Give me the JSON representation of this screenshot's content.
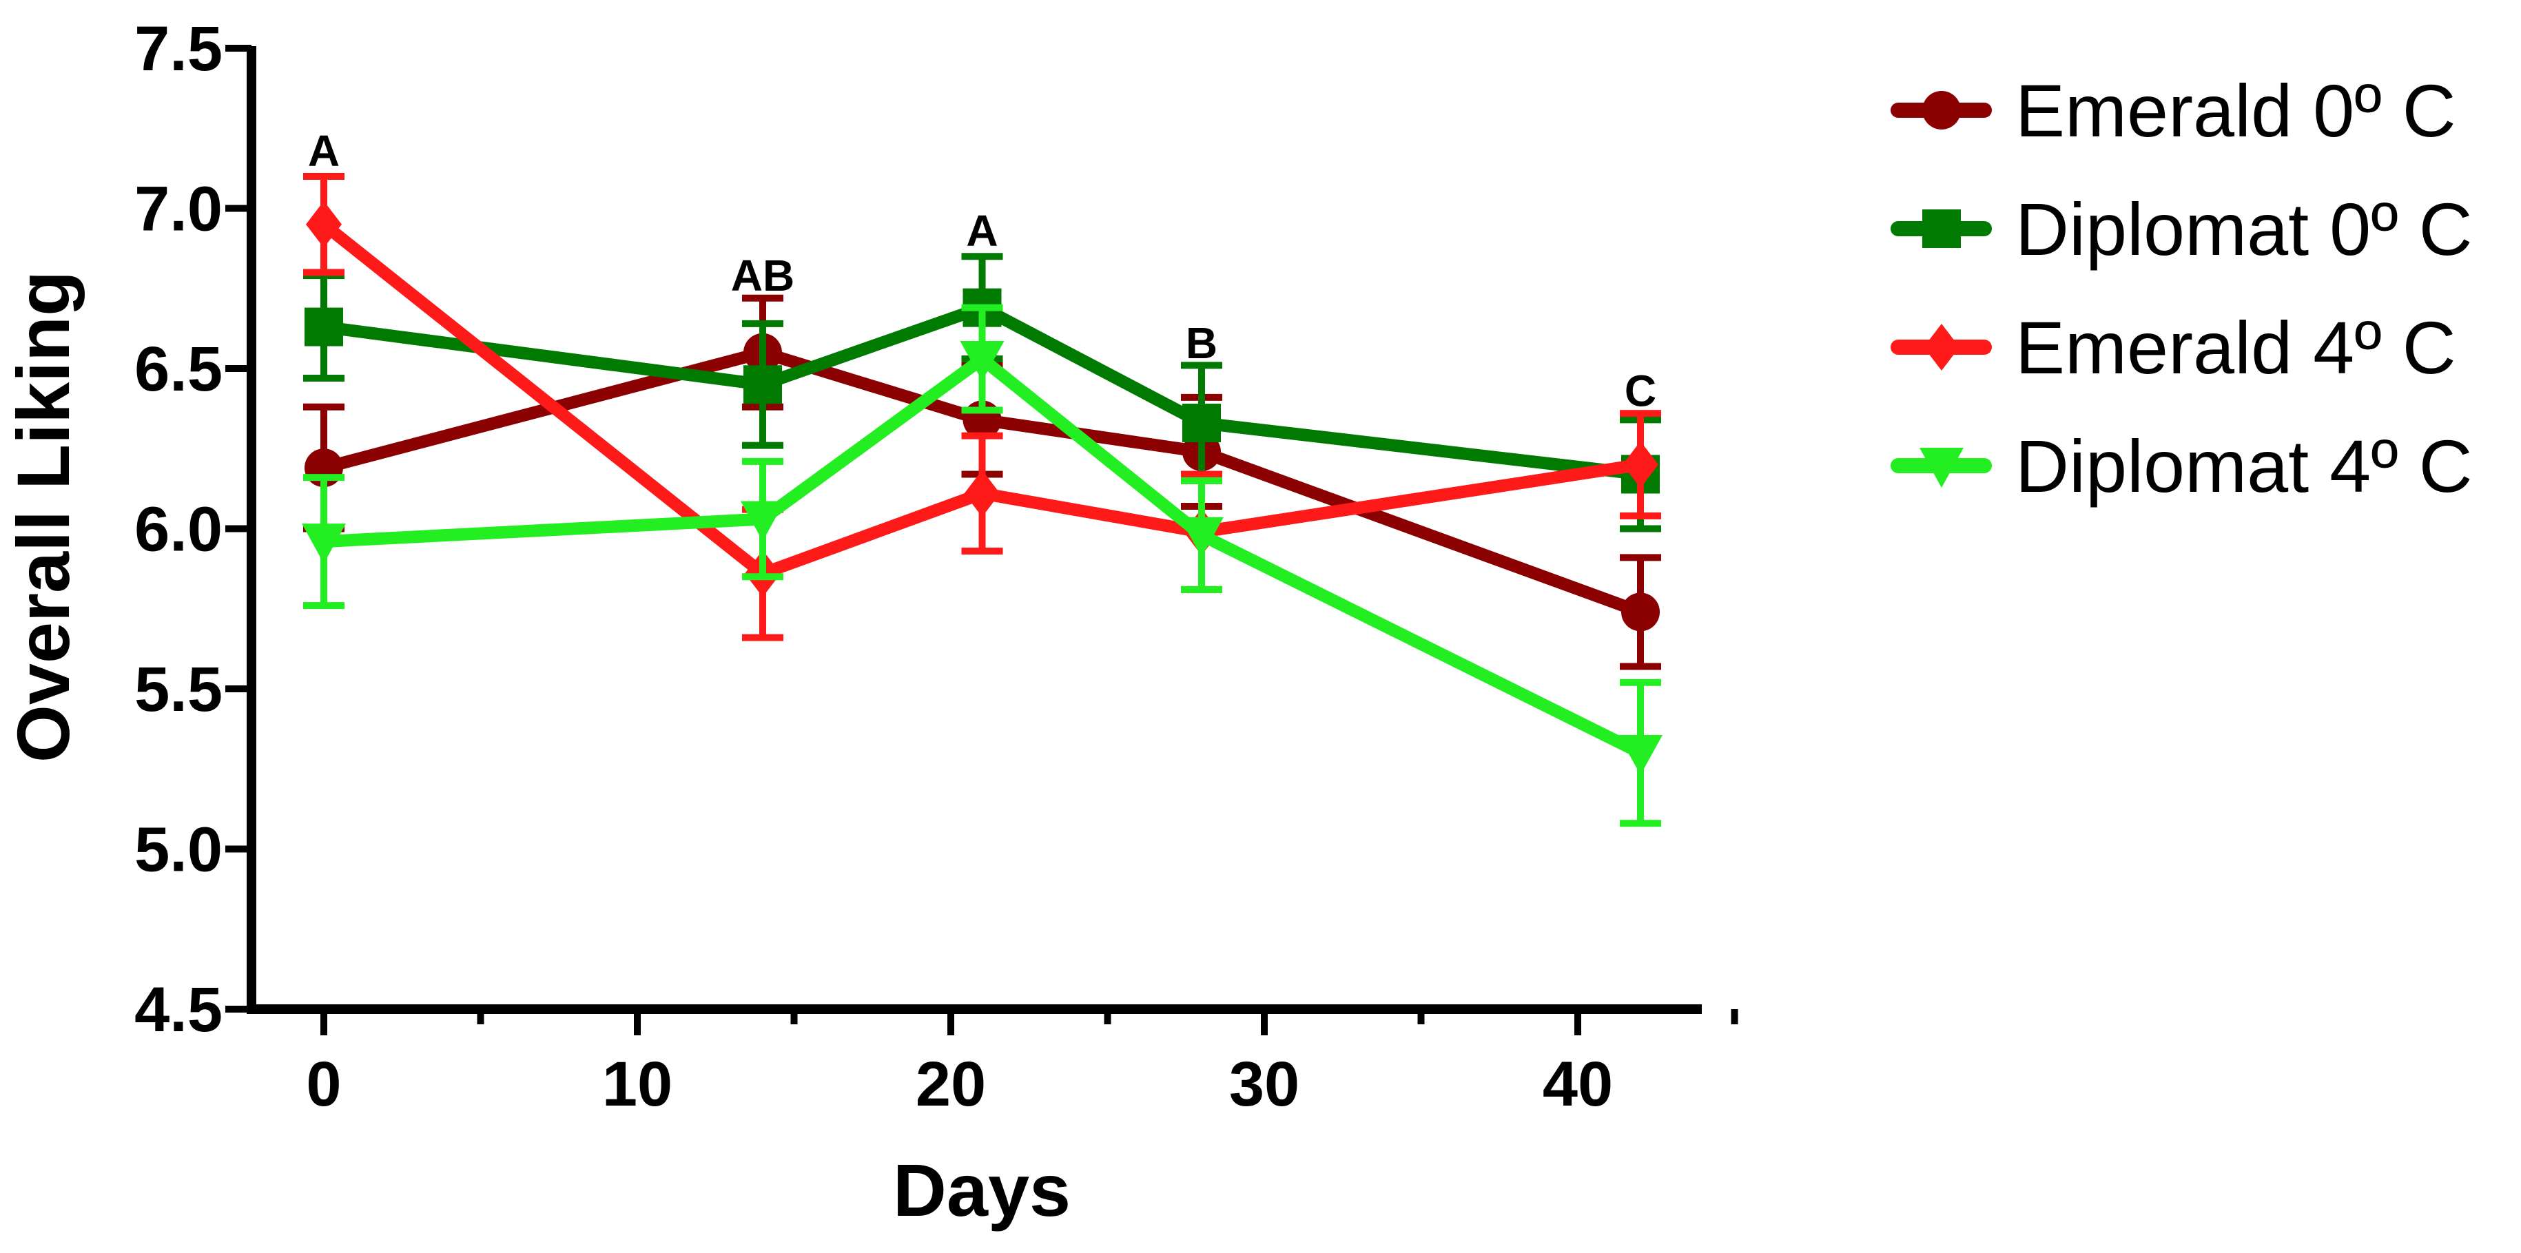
{
  "chart_data": {
    "type": "line",
    "title": "",
    "xlabel": "Days",
    "ylabel": "Overall Liking",
    "xlim": [
      -2,
      45
    ],
    "ylim": [
      4.5,
      7.5
    ],
    "xticks": [
      0,
      10,
      20,
      30,
      40
    ],
    "xtick_labels": [
      "0",
      "10",
      "20",
      "30",
      "40"
    ],
    "yticks": [
      4.5,
      5.0,
      5.5,
      6.0,
      6.5,
      7.0,
      7.5
    ],
    "ytick_labels": [
      "4.5",
      "5.0",
      "5.5",
      "6.0",
      "6.5",
      "7.0",
      "7.5"
    ],
    "legend_position": "right",
    "series": [
      {
        "name": "Emerald 0º C",
        "color": "#8B0000",
        "marker": "circle",
        "x": [
          0,
          14,
          21,
          28,
          42
        ],
        "y": [
          6.19,
          6.55,
          6.34,
          6.24,
          5.74
        ],
        "err": [
          0.19,
          0.17,
          0.17,
          0.17,
          0.17
        ]
      },
      {
        "name": "Diplomat 0º C",
        "color": "#007A00",
        "marker": "square",
        "x": [
          0,
          14,
          21,
          28,
          42
        ],
        "y": [
          6.63,
          6.45,
          6.69,
          6.33,
          6.17
        ],
        "err": [
          0.16,
          0.19,
          0.16,
          0.18,
          0.17
        ]
      },
      {
        "name": "Emerald 4º C",
        "color": "#FF1A1A",
        "marker": "diamond",
        "x": [
          0,
          14,
          21,
          28,
          42
        ],
        "y": [
          6.95,
          5.86,
          6.11,
          5.99,
          6.2
        ],
        "err": [
          0.15,
          0.2,
          0.18,
          0.18,
          0.16
        ]
      },
      {
        "name": "Diplomat 4º C",
        "color": "#22EE22",
        "marker": "triangle-down",
        "x": [
          0,
          14,
          21,
          28,
          42
        ],
        "y": [
          5.96,
          6.03,
          6.53,
          5.98,
          5.3
        ],
        "err": [
          0.2,
          0.18,
          0.16,
          0.17,
          0.22
        ]
      }
    ],
    "annotations": [
      {
        "x": 0,
        "y": 7.18,
        "text": "A"
      },
      {
        "x": 14,
        "y": 6.79,
        "text": "AB"
      },
      {
        "x": 21,
        "y": 6.93,
        "text": "A"
      },
      {
        "x": 28,
        "y": 6.58,
        "text": "B"
      },
      {
        "x": 42,
        "y": 6.43,
        "text": "C"
      }
    ]
  }
}
